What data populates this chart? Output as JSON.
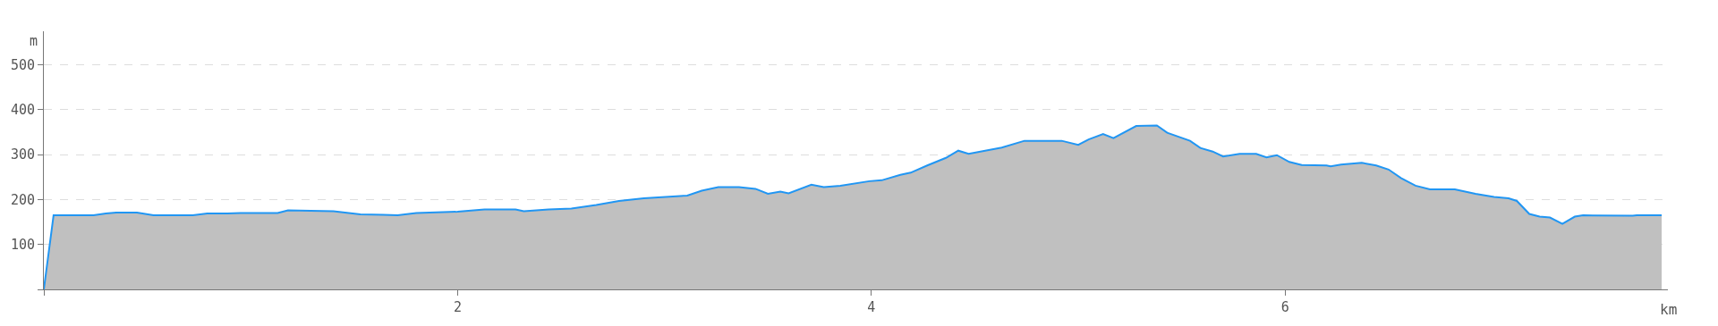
{
  "chart_data": {
    "type": "area",
    "xlabel": "km",
    "ylabel": "m",
    "x": [
      0,
      0.047,
      0.24,
      0.3,
      0.35,
      0.45,
      0.53,
      0.72,
      0.79,
      0.88,
      0.95,
      1.13,
      1.18,
      1.4,
      1.53,
      1.64,
      1.71,
      1.8,
      2.0,
      2.13,
      2.28,
      2.32,
      2.44,
      2.55,
      2.67,
      2.78,
      2.9,
      3.11,
      3.18,
      3.26,
      3.36,
      3.44,
      3.5,
      3.56,
      3.6,
      3.71,
      3.77,
      3.85,
      3.99,
      4.05,
      4.14,
      4.19,
      4.27,
      4.36,
      4.42,
      4.47,
      4.63,
      4.74,
      4.92,
      5.0,
      5.05,
      5.12,
      5.17,
      5.28,
      5.38,
      5.43,
      5.54,
      5.59,
      5.65,
      5.7,
      5.78,
      5.86,
      5.91,
      5.96,
      6.02,
      6.08,
      6.2,
      6.22,
      6.27,
      6.37,
      6.44,
      6.5,
      6.56,
      6.63,
      6.7,
      6.82,
      6.92,
      7.01,
      7.08,
      7.12,
      7.18,
      7.23,
      7.28,
      7.34,
      7.4,
      7.44,
      7.68,
      7.7,
      7.82
    ],
    "series": [
      {
        "color": "#2196f3",
        "values": [
          0,
          165,
          165,
          169,
          171,
          171,
          165,
          165,
          169,
          169,
          170,
          170,
          176,
          174,
          167,
          166,
          165,
          170,
          173,
          178,
          178,
          174,
          178,
          180,
          188,
          197,
          203,
          209,
          220,
          228,
          228,
          224,
          213,
          218,
          214,
          233,
          228,
          231,
          241,
          243,
          255,
          260,
          276,
          293,
          309,
          302,
          316,
          331,
          331,
          322,
          334,
          346,
          337,
          364,
          365,
          349,
          331,
          315,
          307,
          296,
          302,
          302,
          294,
          299,
          284,
          277,
          276,
          274,
          278,
          282,
          276,
          267,
          248,
          231,
          223,
          223,
          213,
          206,
          203,
          197,
          168,
          162,
          160,
          146,
          162,
          165,
          164,
          165,
          165
        ]
      }
    ],
    "xlim": [
      0,
      7.85
    ],
    "ylim": [
      0,
      575
    ],
    "xticks": [
      {
        "value": 0,
        "label": null
      },
      2,
      4,
      6
    ],
    "yticks": [
      {
        "value": 0,
        "label": null
      },
      100,
      200,
      300,
      400,
      500
    ],
    "grid": "y",
    "line_style": "solid",
    "marker": "none",
    "legend": false
  }
}
